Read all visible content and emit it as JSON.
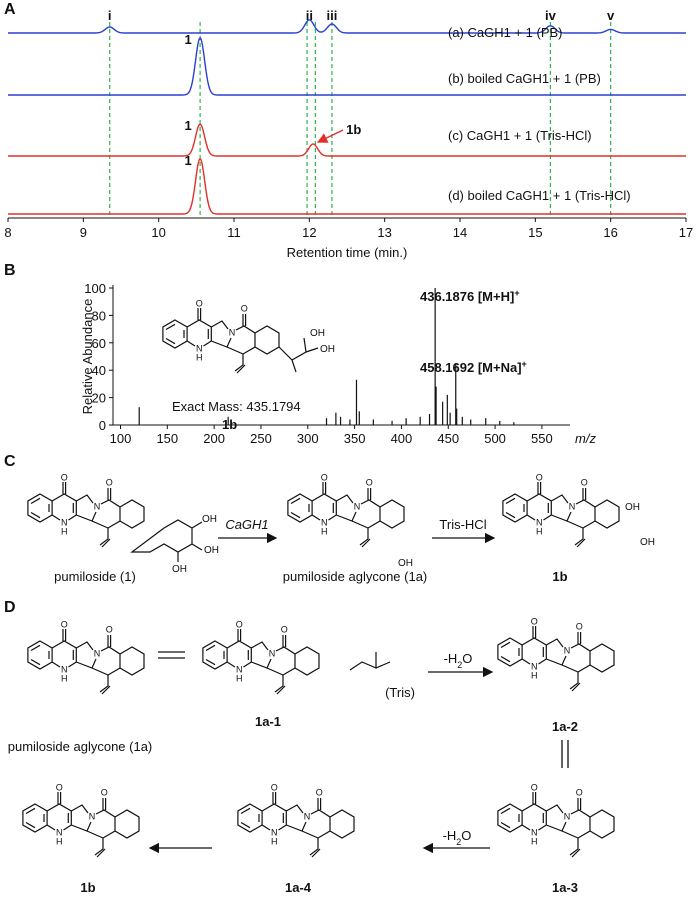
{
  "atoms": {
    "oxygen": "O",
    "nitrogen": "N",
    "hydrogen": "H",
    "hydroxyl": "OH"
  },
  "panel_a": {
    "label": "A",
    "x_label": "Retention time (min.)",
    "xlim": [
      8,
      17
    ],
    "xticks": [
      8,
      9,
      10,
      11,
      12,
      13,
      14,
      15,
      16,
      17
    ],
    "peak_labels": [
      {
        "label": "i",
        "x": 9.35
      },
      {
        "label": "ii",
        "x": 12.0
      },
      {
        "label": "iii",
        "x": 12.3
      },
      {
        "label": "iv",
        "x": 15.2
      },
      {
        "label": "v",
        "x": 16.0
      }
    ],
    "guide_lines": [
      9.35,
      10.55,
      11.97,
      12.08,
      12.3,
      15.2,
      16.0
    ],
    "traces": [
      {
        "name": "(a) CaGH1 + 1 (PB)",
        "color": "#2b3fd4",
        "peaks": [
          [
            9.35,
            0.1
          ],
          [
            12.0,
            0.22
          ],
          [
            12.3,
            0.15
          ],
          [
            15.2,
            0.12
          ],
          [
            16.0,
            0.06
          ]
        ]
      },
      {
        "name": "(b) boiled CaGH1 + 1 (PB)",
        "color": "#2b3fd4",
        "peaks": [
          [
            10.55,
            0.95
          ]
        ],
        "compound": "1"
      },
      {
        "name": "(c) CaGH1 + 1 (Tris-HCl)",
        "color": "#e0302a",
        "peaks": [
          [
            10.55,
            0.53
          ],
          [
            12.05,
            0.2
          ]
        ],
        "compound": "1",
        "annotation": "1b"
      },
      {
        "name": "(d) boiled CaGH1 + 1 (Tris-HCl)",
        "color": "#e0302a",
        "peaks": [
          [
            10.55,
            0.92
          ]
        ],
        "compound": "1"
      }
    ]
  },
  "panel_b": {
    "label": "B",
    "y_label": "Relative Abundance",
    "x_label": "m/z",
    "xlim": [
      92,
      580
    ],
    "ylim": [
      0,
      100
    ],
    "xticks": [
      100,
      150,
      200,
      250,
      300,
      350,
      400,
      450,
      500,
      550
    ],
    "yticks": [
      0,
      20,
      40,
      60,
      80,
      100
    ],
    "peaks": [
      [
        120,
        13
      ],
      [
        215,
        6
      ],
      [
        218,
        4
      ],
      [
        320,
        5
      ],
      [
        330,
        9
      ],
      [
        335,
        6
      ],
      [
        345,
        4
      ],
      [
        352,
        33
      ],
      [
        355,
        10
      ],
      [
        370,
        4
      ],
      [
        390,
        3
      ],
      [
        405,
        5
      ],
      [
        420,
        6
      ],
      [
        430,
        8
      ],
      [
        436,
        100
      ],
      [
        437,
        28
      ],
      [
        444,
        17
      ],
      [
        449,
        22
      ],
      [
        452,
        9
      ],
      [
        458,
        45
      ],
      [
        459,
        12
      ],
      [
        465,
        6
      ],
      [
        474,
        4
      ],
      [
        490,
        5
      ],
      [
        505,
        3
      ],
      [
        520,
        2
      ]
    ],
    "annotations": [
      {
        "mass": "436.1876",
        "ion": " [M+H]",
        "charge": "+"
      },
      {
        "mass": "458.1692",
        "ion": " [M+Na]",
        "charge": "+"
      }
    ],
    "exact_mass": "Exact Mass: 435.1794",
    "compound": "1b"
  },
  "panel_c": {
    "label": "C",
    "compounds": [
      "pumiloside (1)",
      "pumiloside aglycone (1a)",
      "1b"
    ],
    "reagents": [
      "CaGH1",
      "Tris-HCl"
    ]
  },
  "panel_d": {
    "label": "D",
    "compounds": [
      "pumiloside aglycone (1a)",
      "1a-1",
      "1a-2",
      "1a-3",
      "1a-4",
      "1b"
    ],
    "tris": "(Tris)",
    "water_loss": {
      "prefix": "-H",
      "sub": "2",
      "suffix": "O"
    }
  }
}
